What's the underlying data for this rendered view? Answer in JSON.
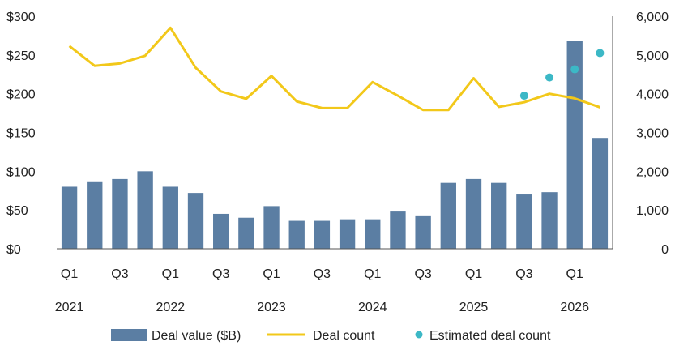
{
  "chart_data": {
    "type": "bar",
    "categories": [
      "Q1 2021",
      "Q2 2021",
      "Q3 2021",
      "Q4 2021",
      "Q1 2022",
      "Q2 2022",
      "Q3 2022",
      "Q4 2022",
      "Q1 2023",
      "Q2 2023",
      "Q3 2023",
      "Q4 2023",
      "Q1 2024",
      "Q2 2024",
      "Q3 2024",
      "Q4 2024",
      "Q1 2025",
      "Q2 2025",
      "Q3 2025",
      "Q4 2025",
      "Q1 2026",
      "Q2 2026"
    ],
    "x_tick_labels": [
      "Q1",
      "",
      "Q3",
      "",
      "Q1",
      "",
      "Q3",
      "",
      "Q1",
      "",
      "Q3",
      "",
      "Q1",
      "",
      "Q3",
      "",
      "Q1",
      "",
      "Q3",
      "",
      "Q1",
      ""
    ],
    "x_year_labels": [
      {
        "label": "2021",
        "index": 0
      },
      {
        "label": "2022",
        "index": 4
      },
      {
        "label": "2023",
        "index": 8
      },
      {
        "label": "2024",
        "index": 12
      },
      {
        "label": "2025",
        "index": 16
      },
      {
        "label": "2026",
        "index": 20
      }
    ],
    "series": [
      {
        "name": "Deal value ($B)",
        "type": "bar",
        "axis": "left",
        "color": "#5b7ea3",
        "values": [
          80,
          87,
          90,
          100,
          80,
          72,
          45,
          40,
          55,
          36,
          36,
          38,
          38,
          48,
          43,
          85,
          90,
          85,
          70,
          73,
          268,
          143
        ]
      },
      {
        "name": "Deal count",
        "type": "line",
        "axis": "right",
        "color": "#f2c81a",
        "values": [
          5230,
          4720,
          4780,
          4980,
          5700,
          4670,
          4060,
          3870,
          4460,
          3800,
          3630,
          3630,
          4300,
          3950,
          3580,
          3580,
          4400,
          3660,
          3780,
          4000,
          3880,
          3650
        ]
      },
      {
        "name": "Estimated deal count",
        "type": "scatter",
        "axis": "right",
        "color": "#3cb8c6",
        "values": [
          null,
          null,
          null,
          null,
          null,
          null,
          null,
          null,
          null,
          null,
          null,
          null,
          null,
          null,
          null,
          null,
          null,
          null,
          3950,
          4420,
          4630,
          5050
        ]
      }
    ],
    "y_left": {
      "ylim": [
        0,
        300
      ],
      "ticks": [
        0,
        50,
        100,
        150,
        200,
        250,
        300
      ],
      "tick_labels": [
        "$0",
        "$50",
        "$100",
        "$150",
        "$200",
        "$250",
        "$300"
      ]
    },
    "y_right": {
      "ylim": [
        0,
        6000
      ],
      "ticks": [
        0,
        1000,
        2000,
        3000,
        4000,
        5000,
        6000
      ],
      "tick_labels": [
        "0",
        "1,000",
        "2,000",
        "3,000",
        "4,000",
        "5,000",
        "6,000"
      ]
    },
    "grid": false,
    "legend_position": "bottom-center"
  }
}
